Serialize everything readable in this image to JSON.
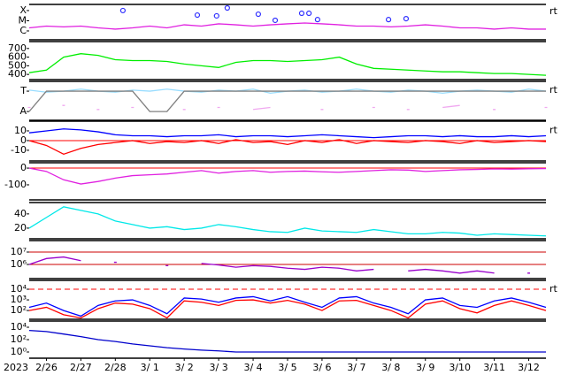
{
  "chart_data": [
    {
      "type": "line",
      "log": true,
      "side_label": "rt",
      "xlim": [
        0.5,
        15.5
      ],
      "ylim": [
        1.35e-07,
        0.0004
      ],
      "yticks": [
        {
          "value": 0.0001,
          "label": "X"
        },
        {
          "value": 1e-05,
          "label": "M"
        },
        {
          "value": 1e-06,
          "label": "C"
        }
      ],
      "x": [
        0.5,
        1,
        1.5,
        2,
        2.5,
        3,
        3.5,
        4,
        4.5,
        5,
        5.5,
        6,
        6.5,
        7,
        7.5,
        8,
        8.5,
        9,
        9.5,
        10,
        10.5,
        11,
        11.5,
        12,
        12.5,
        13,
        13.5,
        14,
        14.5,
        15,
        15.5
      ],
      "series": [
        {
          "color": "#e020e0",
          "values": [
            2e-06,
            3e-06,
            2.5e-06,
            3e-06,
            2e-06,
            1.5e-06,
            2e-06,
            3e-06,
            2e-06,
            4e-06,
            3e-06,
            5e-06,
            4e-06,
            3e-06,
            4e-06,
            5e-06,
            6e-06,
            5e-06,
            4e-06,
            3e-06,
            3e-06,
            2.5e-06,
            3e-06,
            4e-06,
            3e-06,
            2e-06,
            2e-06,
            1.5e-06,
            2e-06,
            1.5e-06,
            1.5e-06
          ]
        },
        {
          "color": "#3030ff",
          "marker": true,
          "x": [
            3.22,
            5.38,
            5.94,
            6.25,
            7.15,
            7.64,
            8.41,
            8.62,
            8.87,
            10.93,
            11.44
          ],
          "values": [
            0.0001,
            3.6e-05,
            3e-05,
            0.00018,
            4.4e-05,
            1.1e-05,
            5.4e-05,
            5.4e-05,
            1.3e-05,
            1.3e-05,
            1.6e-05
          ]
        }
      ]
    },
    {
      "type": "line",
      "xlim": [
        0.5,
        15.5
      ],
      "ylim": [
        340,
        780
      ],
      "yticks": [
        400,
        500,
        600,
        700
      ],
      "x": [
        0.5,
        1,
        1.5,
        2,
        2.5,
        3,
        3.5,
        4,
        4.5,
        5,
        5.5,
        6,
        6.5,
        7,
        7.5,
        8,
        8.5,
        9,
        9.5,
        10,
        10.5,
        11,
        11.5,
        12,
        12.5,
        13,
        13.5,
        14,
        14.5,
        15,
        15.5
      ],
      "series": [
        {
          "color": "#00ee00",
          "values": [
            420,
            450,
            600,
            640,
            620,
            570,
            560,
            560,
            550,
            520,
            500,
            480,
            540,
            560,
            560,
            550,
            560,
            570,
            600,
            520,
            470,
            460,
            450,
            440,
            430,
            430,
            420,
            410,
            410,
            400,
            390
          ]
        }
      ]
    },
    {
      "type": "line",
      "side_label": "rt",
      "xlim": [
        0.5,
        15.5
      ],
      "ylim": [
        -0.43,
        1.48
      ],
      "yticks": [
        {
          "value": 1,
          "label": "T"
        },
        {
          "value": 0,
          "label": "A"
        }
      ],
      "x": [
        0.5,
        1,
        1.5,
        2,
        2.5,
        3,
        3.5,
        4,
        4.5,
        5,
        5.5,
        6,
        6.5,
        7,
        7.5,
        8,
        8.5,
        9,
        9.5,
        10,
        10.5,
        11,
        11.5,
        12,
        12.5,
        13,
        13.5,
        14,
        14.5,
        15,
        15.5
      ],
      "series": [
        {
          "color": "#99ddff",
          "values": [
            1.05,
            0.95,
            1.0,
            1.1,
            1.0,
            0.95,
            1.05,
            1.0,
            1.1,
            1.0,
            0.95,
            1.05,
            1.0,
            1.1,
            0.9,
            1.0,
            1.05,
            0.95,
            1.0,
            1.1,
            1.0,
            0.95,
            1.05,
            1.0,
            0.9,
            1.0,
            1.05,
            1.0,
            0.95,
            1.1,
            1.0
          ]
        },
        {
          "color": "#f0a8f0",
          "values": [
            0.2,
            null,
            0.3,
            null,
            0.1,
            null,
            0.2,
            null,
            null,
            0.1,
            null,
            0.2,
            null,
            0.1,
            0.2,
            null,
            null,
            0.1,
            null,
            null,
            0.2,
            null,
            0.1,
            null,
            0.2,
            0.3,
            null,
            0.1,
            null,
            null,
            0.2
          ]
        },
        {
          "color": "#808080",
          "values": [
            0,
            1,
            1,
            1,
            1,
            1,
            1,
            0,
            0,
            1,
            1,
            1,
            1,
            1,
            1,
            1,
            1,
            1,
            1,
            1,
            1,
            1,
            1,
            1,
            1,
            1,
            1,
            1,
            1,
            1,
            1
          ]
        }
      ]
    },
    {
      "type": "line",
      "side_label": "rt",
      "xlim": [
        0.5,
        15.5
      ],
      "ylim": [
        -21,
        20
      ],
      "yticks": [
        -10,
        0,
        10
      ],
      "hlines": [
        {
          "value": 0,
          "color": "#ff0000"
        }
      ],
      "x": [
        0.5,
        1,
        1.5,
        2,
        2.5,
        3,
        3.5,
        4,
        4.5,
        5,
        5.5,
        6,
        6.5,
        7,
        7.5,
        8,
        8.5,
        9,
        9.5,
        10,
        10.5,
        11,
        11.5,
        12,
        12.5,
        13,
        13.5,
        14,
        14.5,
        15,
        15.5
      ],
      "series": [
        {
          "color": "#0000ff",
          "values": [
            8,
            10,
            12,
            11,
            9,
            6,
            5,
            5,
            4,
            5,
            5,
            6,
            4,
            5,
            5,
            4,
            5,
            6,
            5,
            4,
            3,
            4,
            5,
            5,
            4,
            5,
            4,
            4,
            5,
            4,
            5
          ]
        },
        {
          "color": "#ff0000",
          "values": [
            0,
            -5,
            -14,
            -8,
            -4,
            -2,
            0,
            -3,
            -1,
            -2,
            0,
            -3,
            1,
            -2,
            -1,
            -4,
            0,
            -2,
            1,
            -3,
            0,
            -1,
            -2,
            0,
            -1,
            -3,
            0,
            -2,
            -1,
            0,
            -1
          ]
        }
      ]
    },
    {
      "type": "line",
      "xlim": [
        0.5,
        15.5
      ],
      "ylim": [
        -190,
        32
      ],
      "yticks": [
        -100,
        0
      ],
      "hlines": [
        {
          "value": 0,
          "color": "#ff0000"
        }
      ],
      "x": [
        0.5,
        1,
        1.5,
        2,
        2.5,
        3,
        3.5,
        4,
        4.5,
        5,
        5.5,
        6,
        6.5,
        7,
        7.5,
        8,
        8.5,
        9,
        9.5,
        10,
        10.5,
        11,
        11.5,
        12,
        12.5,
        13,
        13.5,
        14,
        14.5,
        15,
        15.5
      ],
      "series": [
        {
          "color": "#e020e0",
          "values": [
            0,
            -20,
            -70,
            -95,
            -80,
            -60,
            -45,
            -40,
            -35,
            -25,
            -15,
            -30,
            -20,
            -15,
            -25,
            -20,
            -18,
            -22,
            -25,
            -20,
            -15,
            -10,
            -12,
            -20,
            -15,
            -10,
            -8,
            -5,
            -6,
            -4,
            -3
          ]
        }
      ]
    },
    {
      "type": "line",
      "xlim": [
        0.5,
        15.5
      ],
      "ylim": [
        5,
        56
      ],
      "yticks": [
        20,
        40
      ],
      "x": [
        0.5,
        1,
        1.5,
        2,
        2.5,
        3,
        3.5,
        4,
        4.5,
        5,
        5.5,
        6,
        6.5,
        7,
        7.5,
        8,
        8.5,
        9,
        9.5,
        10,
        10.5,
        11,
        11.5,
        12,
        12.5,
        13,
        13.5,
        14,
        14.5,
        15,
        15.5
      ],
      "series": [
        {
          "color": "#00e8e8",
          "values": [
            20,
            35,
            50,
            45,
            40,
            30,
            25,
            20,
            22,
            18,
            20,
            25,
            22,
            18,
            15,
            14,
            20,
            16,
            15,
            14,
            18,
            15,
            12,
            12,
            14,
            13,
            10,
            12,
            11,
            10,
            9
          ]
        }
      ]
    },
    {
      "type": "line",
      "log": true,
      "xlim": [
        0.5,
        15.5
      ],
      "ylim": [
        72000,
        85000000
      ],
      "yticks": [
        {
          "value": 1000000,
          "label": "10⁶"
        },
        {
          "value": 10000000,
          "label": "10⁷"
        }
      ],
      "hlines": [
        {
          "value": 10000000,
          "color": "#cc0000"
        },
        {
          "value": 1000000,
          "color": "#cc0000"
        }
      ],
      "x": [
        0.5,
        1,
        1.5,
        2,
        2.5,
        3,
        3.5,
        4,
        4.5,
        5,
        5.5,
        6,
        6.5,
        7,
        7.5,
        8,
        8.5,
        9,
        9.5,
        10,
        10.5,
        11,
        11.5,
        12,
        12.5,
        13,
        13.5,
        14,
        14.5,
        15,
        15.5
      ],
      "series": [
        {
          "color": "#9900cc",
          "values": [
            1000000,
            3000000,
            4000000,
            2000000,
            null,
            1500000,
            null,
            null,
            800000,
            null,
            1200000,
            900000,
            600000,
            800000,
            700000,
            500000,
            400000,
            600000,
            500000,
            300000,
            400000,
            null,
            300000,
            400000,
            300000,
            200000,
            300000,
            200000,
            null,
            200000,
            null
          ]
        }
      ]
    },
    {
      "type": "line",
      "log": true,
      "side_label": "rt",
      "xlim": [
        0.5,
        15.5
      ],
      "ylim": [
        15,
        68000
      ],
      "yticks": [
        {
          "value": 100,
          "label": "10²"
        },
        {
          "value": 1000,
          "label": "10³"
        },
        {
          "value": 10000,
          "label": "10⁴"
        }
      ],
      "hlines": [
        {
          "value": 10000,
          "color": "#ff0000",
          "dash": true
        }
      ],
      "x": [
        0.5,
        1,
        1.5,
        2,
        2.5,
        3,
        3.5,
        4,
        4.5,
        5,
        5.5,
        6,
        6.5,
        7,
        7.5,
        8,
        8.5,
        9,
        9.5,
        10,
        10.5,
        11,
        11.5,
        12,
        12.5,
        13,
        13.5,
        14,
        14.5,
        15,
        15.5
      ],
      "series": [
        {
          "color": "#0000ff",
          "values": [
            200,
            500,
            100,
            30,
            300,
            800,
            1000,
            300,
            50,
            1500,
            1200,
            600,
            1500,
            2000,
            800,
            2000,
            600,
            200,
            1500,
            2000,
            500,
            200,
            50,
            1000,
            1500,
            300,
            200,
            800,
            1500,
            600,
            200
          ]
        },
        {
          "color": "#ff0000",
          "values": [
            100,
            200,
            40,
            20,
            150,
            500,
            400,
            150,
            20,
            800,
            600,
            300,
            900,
            1000,
            500,
            900,
            400,
            100,
            800,
            900,
            300,
            100,
            20,
            400,
            800,
            150,
            60,
            300,
            800,
            300,
            100
          ]
        }
      ]
    },
    {
      "type": "line",
      "log": true,
      "xlim": [
        0.5,
        15.5
      ],
      "ylim": [
        0.1,
        100000
      ],
      "yticks": [
        {
          "value": 1,
          "label": "10⁰"
        },
        {
          "value": 100,
          "label": "10²"
        },
        {
          "value": 10000,
          "label": "10⁴"
        }
      ],
      "year": "2023",
      "xticks": [
        {
          "value": 1,
          "label": "2/26"
        },
        {
          "value": 2,
          "label": "2/27"
        },
        {
          "value": 3,
          "label": "2/28"
        },
        {
          "value": 4,
          "label": "3/ 1"
        },
        {
          "value": 5,
          "label": "3/ 2"
        },
        {
          "value": 6,
          "label": "3/ 3"
        },
        {
          "value": 7,
          "label": "3/ 4"
        },
        {
          "value": 8,
          "label": "3/ 5"
        },
        {
          "value": 9,
          "label": "3/ 6"
        },
        {
          "value": 10,
          "label": "3/ 7"
        },
        {
          "value": 11,
          "label": "3/ 8"
        },
        {
          "value": 12,
          "label": "3/ 9"
        },
        {
          "value": 13,
          "label": "3/10"
        },
        {
          "value": 14,
          "label": "3/11"
        },
        {
          "value": 15,
          "label": "3/12"
        }
      ],
      "x": [
        0.5,
        1,
        1.5,
        2,
        2.5,
        3,
        3.5,
        4,
        4.5,
        5,
        5.5,
        6,
        6.5,
        7,
        7.5,
        8,
        8.5,
        9,
        9.5,
        10,
        10.5,
        11,
        11.5,
        12,
        12.5,
        13,
        13.5,
        14,
        14.5,
        15,
        15.5
      ],
      "series": [
        {
          "color": "#0000cc",
          "values": [
            3000,
            2000,
            800,
            300,
            100,
            50,
            20,
            10,
            5,
            3,
            2,
            1.5,
            1,
            1,
            1,
            1,
            1,
            1,
            1,
            1,
            1,
            1,
            1,
            1,
            1,
            1,
            1,
            1,
            1,
            1,
            1
          ]
        }
      ]
    }
  ]
}
